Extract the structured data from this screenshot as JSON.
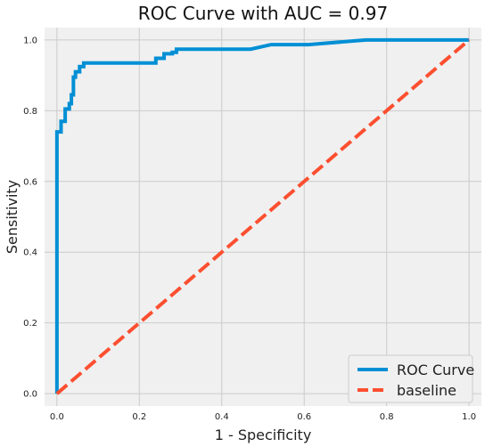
{
  "chart_data": {
    "type": "line",
    "title": "ROC Curve with AUC = 0.97",
    "xlabel": "1 - Specificity",
    "ylabel": "Sensitivity",
    "xlim": [
      -0.03,
      1.03
    ],
    "ylim": [
      -0.035,
      1.035
    ],
    "xticks": [
      0.0,
      0.2,
      0.4,
      0.6,
      0.8,
      1.0
    ],
    "yticks": [
      0.0,
      0.2,
      0.4,
      0.6,
      0.8,
      1.0
    ],
    "xtick_labels": [
      "0.0",
      "0.2",
      "0.4",
      "0.6",
      "0.8",
      "1.0"
    ],
    "ytick_labels": [
      "0.0",
      "0.2",
      "0.4",
      "0.6",
      "0.8",
      "1.0"
    ],
    "grid": true,
    "legend_position": "lower-right",
    "series": [
      {
        "name": "ROC Curve",
        "color": "#008fd5",
        "style": "solid",
        "x": [
          0.0,
          0.0,
          0.01,
          0.01,
          0.02,
          0.02,
          0.03,
          0.03,
          0.035,
          0.035,
          0.04,
          0.04,
          0.045,
          0.045,
          0.055,
          0.055,
          0.065,
          0.065,
          0.07,
          0.24,
          0.24,
          0.26,
          0.26,
          0.28,
          0.28,
          0.29,
          0.29,
          0.47,
          0.52,
          0.61,
          0.75,
          1.0
        ],
        "y": [
          0.0,
          0.74,
          0.74,
          0.77,
          0.77,
          0.805,
          0.805,
          0.82,
          0.82,
          0.845,
          0.845,
          0.895,
          0.895,
          0.91,
          0.91,
          0.925,
          0.925,
          0.935,
          0.935,
          0.935,
          0.948,
          0.948,
          0.961,
          0.961,
          0.965,
          0.965,
          0.974,
          0.974,
          0.987,
          0.987,
          1.0,
          1.0
        ]
      },
      {
        "name": "baseline",
        "color": "#fc4f30",
        "style": "dashed",
        "x": [
          0.0,
          1.0
        ],
        "y": [
          0.0,
          1.0
        ]
      }
    ]
  }
}
